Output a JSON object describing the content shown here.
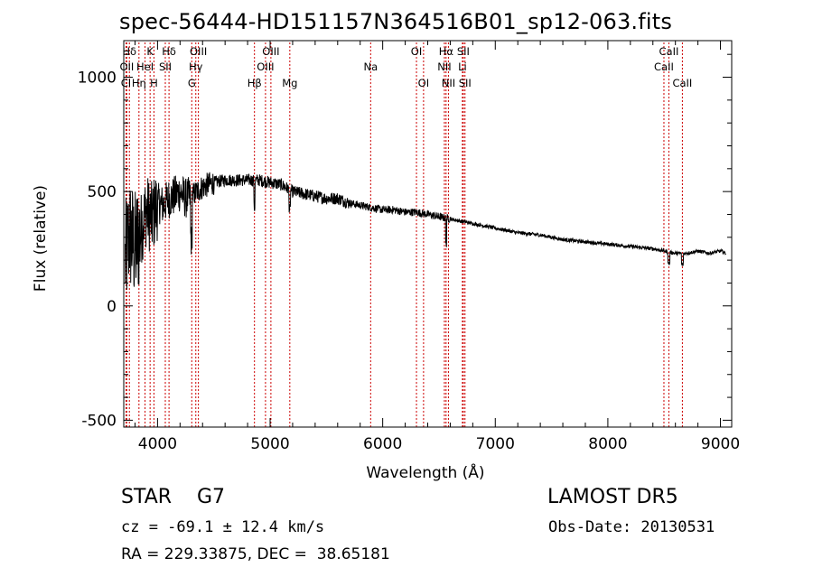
{
  "chart_data": {
    "type": "line",
    "title": "spec-56444-HD151157N364516B01_sp12-063.fits",
    "xlabel": "Wavelength (Å)",
    "ylabel": "Flux (relative)",
    "xlim": [
      3700,
      9100
    ],
    "ylim": [
      -530,
      1160
    ],
    "xticks": [
      4000,
      5000,
      6000,
      7000,
      8000,
      9000
    ],
    "yticks": [
      -500,
      0,
      500,
      1000
    ],
    "grid": false,
    "series": [
      {
        "x": [
          3700,
          3750,
          3800,
          3850,
          3900,
          3950,
          4000,
          4050,
          4100,
          4150,
          4200,
          4250,
          4300,
          4350,
          4400,
          4450,
          4500,
          4600,
          4700,
          4800,
          4900,
          5000,
          5100,
          5200,
          5300,
          5400,
          5500,
          5600,
          5700,
          5800,
          5900,
          6000,
          6100,
          6200,
          6300,
          6400,
          6500,
          6600,
          6700,
          6800,
          6900,
          7000,
          7200,
          7400,
          7600,
          7800,
          8000,
          8200,
          8400,
          8500,
          8600,
          8700,
          8800,
          8900,
          9000,
          9050
        ],
        "y": [
          150,
          320,
          250,
          330,
          420,
          380,
          450,
          440,
          470,
          480,
          500,
          470,
          480,
          500,
          520,
          530,
          540,
          550,
          550,
          550,
          550,
          540,
          530,
          500,
          490,
          480,
          470,
          470,
          450,
          440,
          430,
          420,
          420,
          410,
          410,
          400,
          390,
          380,
          370,
          360,
          350,
          340,
          320,
          310,
          290,
          280,
          270,
          260,
          250,
          240,
          230,
          230,
          240,
          230,
          240,
          230
        ]
      }
    ],
    "lines": [
      {
        "label": "Hδ",
        "x": 3750,
        "row": 0
      },
      {
        "label": "K",
        "x": 3934,
        "row": 0
      },
      {
        "label": "Hδ",
        "x": 4102,
        "row": 0
      },
      {
        "label": "OIII",
        "x": 4363,
        "row": 0
      },
      {
        "label": "OIII",
        "x": 5007,
        "row": 0
      },
      {
        "label": "OI",
        "x": 6300,
        "row": 0
      },
      {
        "label": "Hα",
        "x": 6563,
        "row": 0
      },
      {
        "label": "SII",
        "x": 6716,
        "row": 0
      },
      {
        "label": "CaII",
        "x": 8542,
        "row": 0
      },
      {
        "label": "OII",
        "x": 3727,
        "row": 1
      },
      {
        "label": "HeI",
        "x": 3889,
        "row": 1
      },
      {
        "label": "SII",
        "x": 4069,
        "row": 1
      },
      {
        "label": "Hγ",
        "x": 4340,
        "row": 1
      },
      {
        "label": "OIII",
        "x": 4959,
        "row": 1
      },
      {
        "label": "Na",
        "x": 5893,
        "row": 1
      },
      {
        "label": "NII",
        "x": 6548,
        "row": 1
      },
      {
        "label": "Li",
        "x": 6708,
        "row": 1
      },
      {
        "label": "CaII",
        "x": 8498,
        "row": 1
      },
      {
        "label": "CI",
        "x": 3720,
        "row": 2
      },
      {
        "label": "Hη",
        "x": 3835,
        "row": 2
      },
      {
        "label": "H",
        "x": 3968,
        "row": 2
      },
      {
        "label": "G",
        "x": 4304,
        "row": 2
      },
      {
        "label": "Hβ",
        "x": 4861,
        "row": 2
      },
      {
        "label": "Mg",
        "x": 5175,
        "row": 2
      },
      {
        "label": "OI",
        "x": 6363,
        "row": 2
      },
      {
        "label": "NII",
        "x": 6584,
        "row": 2
      },
      {
        "label": "SII",
        "x": 6731,
        "row": 2
      },
      {
        "label": "CaII",
        "x": 8662,
        "row": 2
      }
    ]
  },
  "info": {
    "object": "STAR    G7",
    "survey": "LAMOST DR5",
    "cz": "cz = -69.1 ± 12.4 km/s",
    "obs_date": "Obs-Date: 20130531",
    "radec": "RA = 229.33875, DEC =  38.65181"
  }
}
